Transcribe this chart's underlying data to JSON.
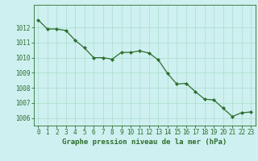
{
  "x": [
    0,
    1,
    2,
    3,
    4,
    5,
    6,
    7,
    8,
    9,
    10,
    11,
    12,
    13,
    14,
    15,
    16,
    17,
    18,
    19,
    20,
    21,
    22,
    23
  ],
  "y": [
    1012.5,
    1011.9,
    1011.9,
    1011.8,
    1011.15,
    1010.65,
    1010.0,
    1010.0,
    1009.9,
    1010.35,
    1010.35,
    1010.45,
    1010.3,
    1009.85,
    1008.95,
    1008.25,
    1008.3,
    1007.75,
    1007.25,
    1007.2,
    1006.65,
    1006.1,
    1006.35,
    1006.4
  ],
  "line_color": "#2d6e2d",
  "marker": "D",
  "marker_size": 2.0,
  "bg_color": "#cef0f0",
  "grid_color": "#aaddcc",
  "xlabel": "Graphe pression niveau de la mer (hPa)",
  "xlabel_color": "#2d6e2d",
  "xlabel_fontsize": 6.5,
  "tick_color": "#2d6e2d",
  "tick_fontsize": 5.5,
  "ylim": [
    1005.5,
    1013.5
  ],
  "yticks": [
    1006,
    1007,
    1008,
    1009,
    1010,
    1011,
    1012
  ],
  "xticks": [
    0,
    1,
    2,
    3,
    4,
    5,
    6,
    7,
    8,
    9,
    10,
    11,
    12,
    13,
    14,
    15,
    16,
    17,
    18,
    19,
    20,
    21,
    22,
    23
  ]
}
